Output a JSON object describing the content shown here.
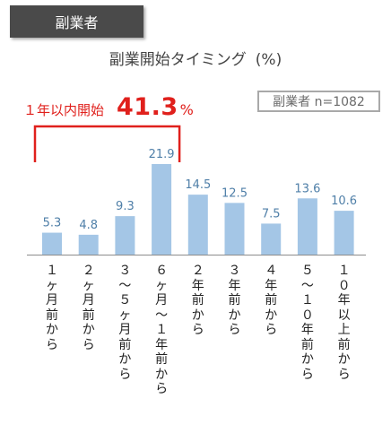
{
  "header": {
    "tag": "副業者"
  },
  "sample": {
    "label": "副業者 n=1082"
  },
  "highlight": {
    "label": "１年以内開始",
    "value": "41.3",
    "unit": "%"
  },
  "colors": {
    "bar": "#a4c6e6",
    "value_text": "#4f7fa8",
    "bracket": "#e0201c"
  },
  "chart_data": {
    "type": "bar",
    "title": "副業開始タイミング",
    "unit": "(%)",
    "categories": [
      "１ヶ月前から",
      "２ヶ月前から",
      "３〜５ヶ月前から",
      "６ヶ月〜１年前から",
      "２年前から",
      "３年前から",
      "４年前から",
      "５〜１０年前から",
      "１０年以上前から"
    ],
    "values": [
      5.3,
      4.8,
      9.3,
      21.9,
      14.5,
      12.5,
      7.5,
      13.6,
      10.6
    ],
    "value_labels": [
      "5.3",
      "4.8",
      "9.3",
      "21.9",
      "14.5",
      "12.5",
      "7.5",
      "13.6",
      "10.6"
    ],
    "ylim": [
      0,
      21.9
    ]
  }
}
